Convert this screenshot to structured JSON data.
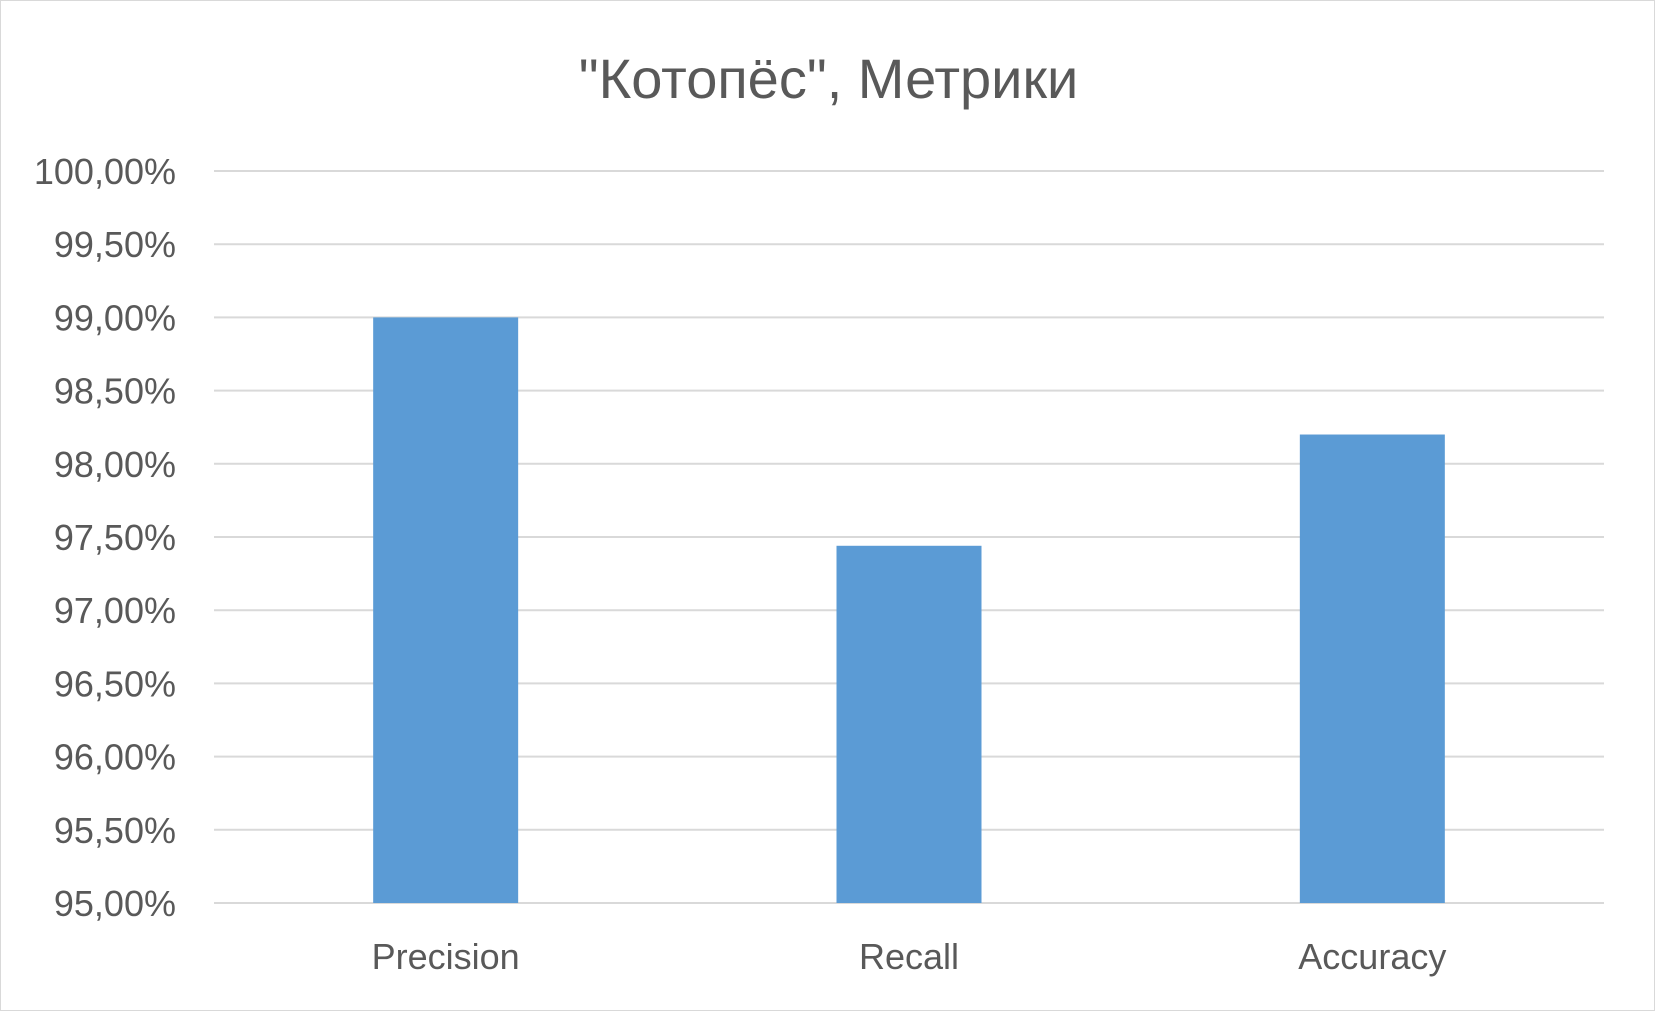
{
  "chart_data": {
    "type": "bar",
    "title": "\"Котопёс\", Метрики",
    "categories": [
      "Precision",
      "Recall",
      "Accuracy"
    ],
    "values": [
      99.0,
      97.44,
      98.2
    ],
    "ylim": [
      95.0,
      100.0
    ],
    "ytick_step": 0.5,
    "ytick_labels": [
      "95,00%",
      "95,50%",
      "96,00%",
      "96,50%",
      "97,00%",
      "97,50%",
      "98,00%",
      "98,50%",
      "99,00%",
      "99,50%",
      "100,00%"
    ],
    "grid": true,
    "legend": "none",
    "bar_color": "#5b9bd5",
    "grid_color": "#d9d9d9",
    "text_color": "#595959"
  }
}
